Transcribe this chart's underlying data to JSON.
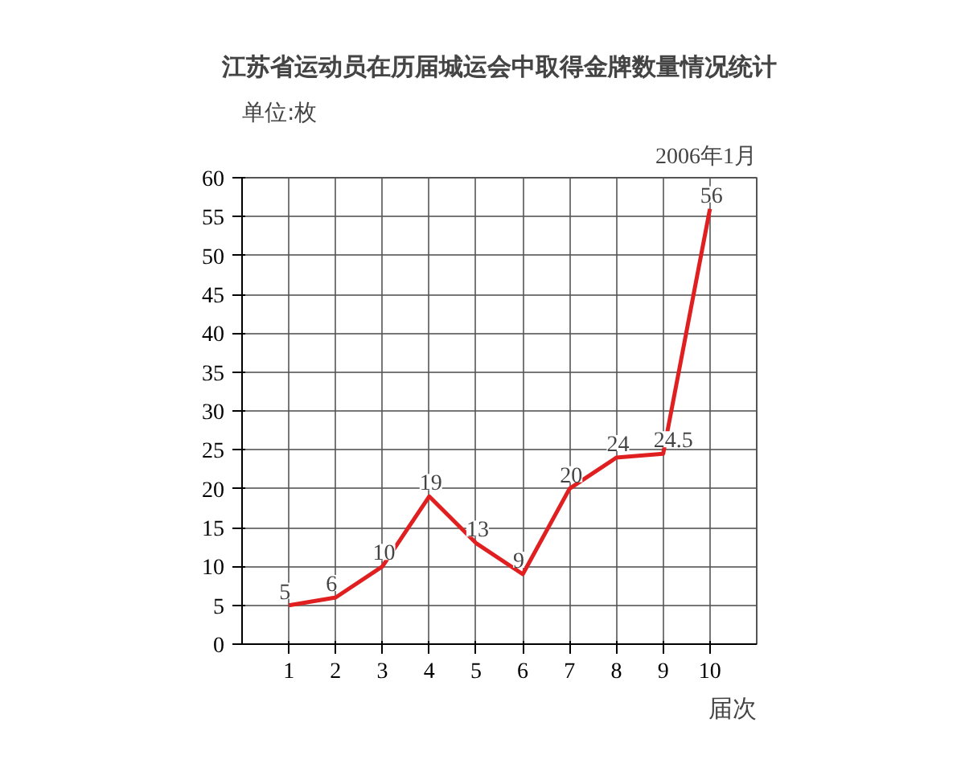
{
  "chart_data": {
    "type": "line",
    "title": "江苏省运动员在历届城运会中取得金牌数量情况统计",
    "ylabel": "单位:枚",
    "xlabel": "届次",
    "annotations": [
      "2006年1月"
    ],
    "x": [
      1,
      2,
      3,
      4,
      5,
      6,
      7,
      8,
      9,
      10
    ],
    "series": [
      {
        "color": "#e02020",
        "values": [
          5,
          6,
          10,
          19,
          13,
          9,
          20,
          24,
          24.5,
          56
        ]
      }
    ],
    "xlim": [
      0,
      11
    ],
    "xticks": [
      1,
      2,
      3,
      4,
      5,
      6,
      7,
      8,
      9,
      10
    ],
    "ylim": [
      0,
      60
    ],
    "yticks": [
      0,
      5,
      10,
      15,
      20,
      25,
      30,
      35,
      40,
      45,
      50,
      55,
      60
    ],
    "grid": true,
    "marker": "none",
    "line_style": "solid",
    "data_labels": true
  }
}
